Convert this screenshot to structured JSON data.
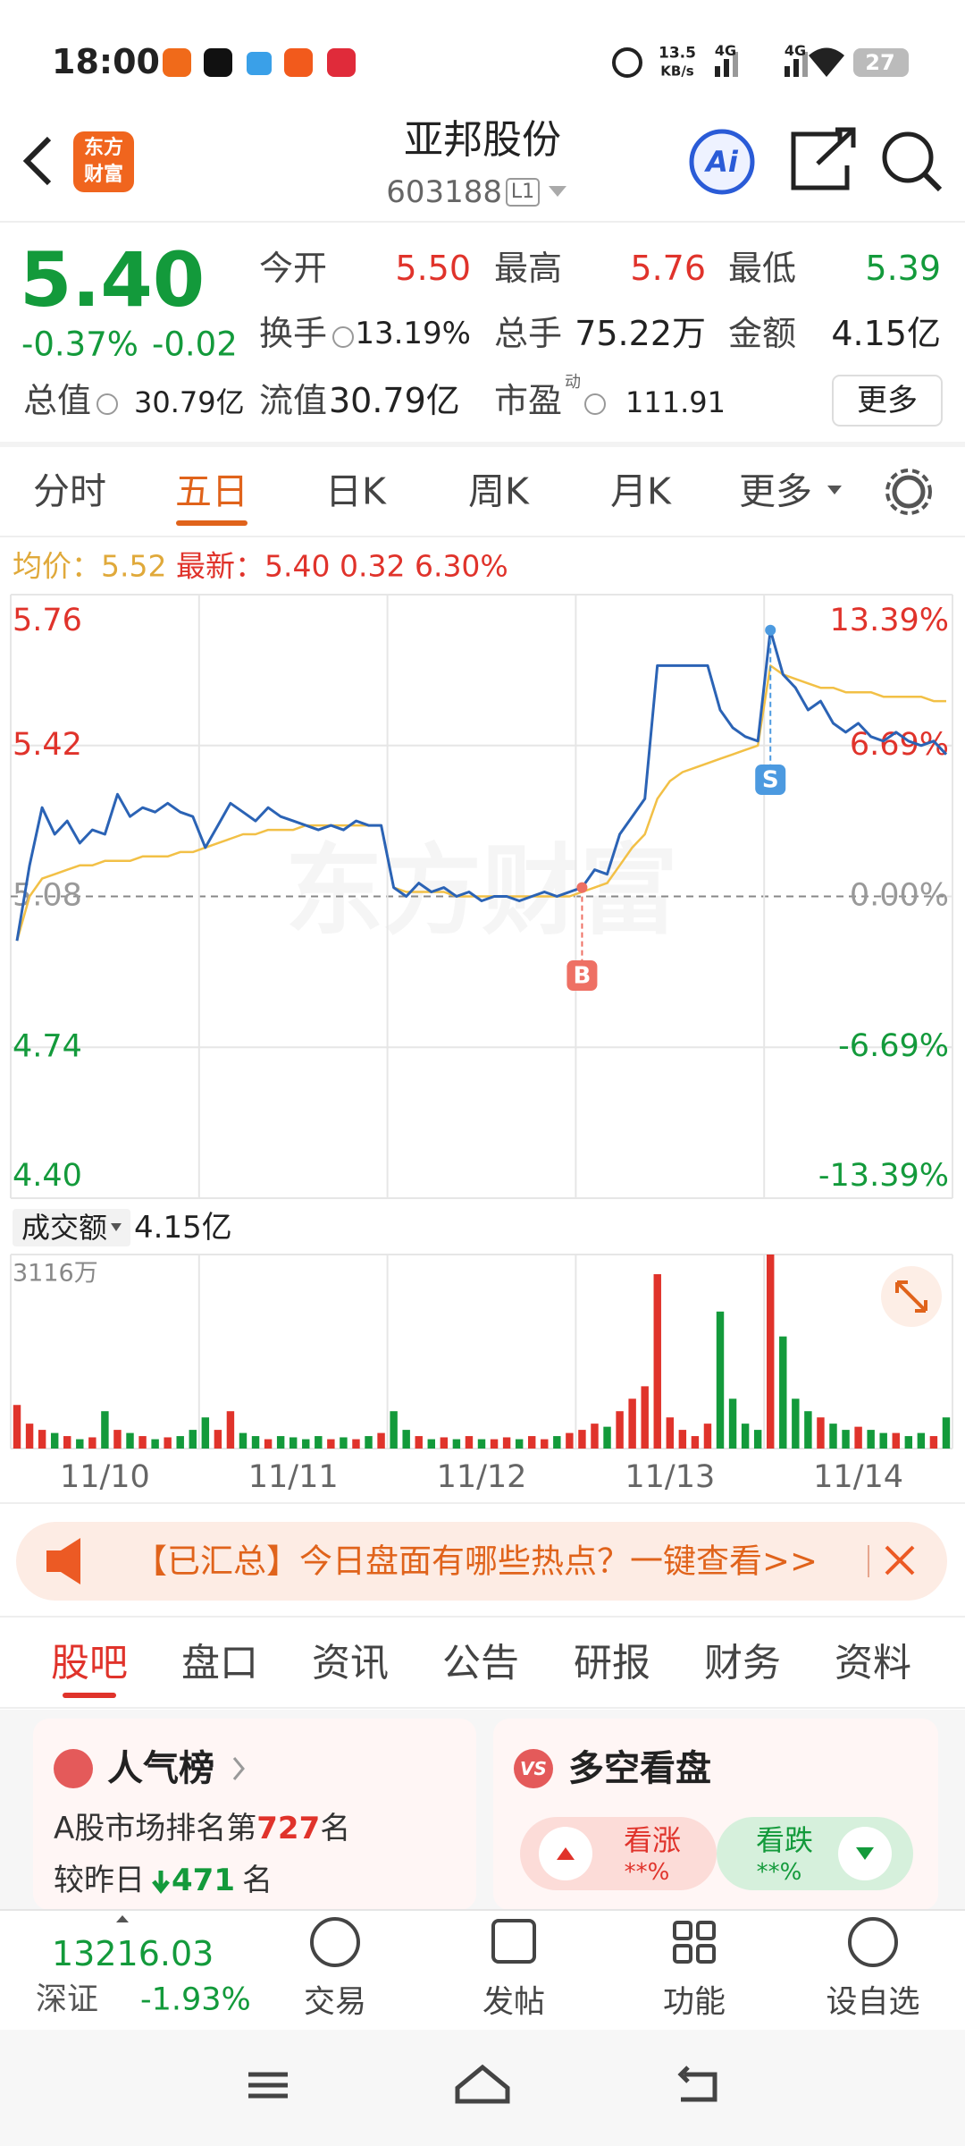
{
  "status_bar": {
    "time": "18:00",
    "speed": "13.5",
    "speed_unit": "KB/s",
    "net1": "4G",
    "net2": "4G",
    "battery": "27"
  },
  "header": {
    "logo_top": "东方",
    "logo_bottom": "财富",
    "title": "亚邦股份",
    "code": "603188",
    "level": "L1",
    "ai": "Ai"
  },
  "quote": {
    "price": "5.40",
    "change_pct": "-0.37%",
    "change": "-0.02",
    "open_label": "今开",
    "open": "5.50",
    "high_label": "最高",
    "high": "5.76",
    "low_label": "最低",
    "low": "5.39",
    "turnover_label": "换手",
    "turnover": "13.19%",
    "volume_label": "总手",
    "volume": "75.22万",
    "amount_label": "金额",
    "amount": "4.15亿",
    "mcap_label": "总值",
    "mcap": "30.79亿",
    "float_label": "流值",
    "float": "30.79亿",
    "pe_label": "市盈",
    "pe_sup": "动",
    "pe": "111.91",
    "more": "更多"
  },
  "chart_tabs": {
    "items": [
      "分时",
      "五日",
      "日K",
      "周K",
      "月K",
      "更多"
    ],
    "active": 1
  },
  "chart_legend": {
    "avg_label": "均价：",
    "avg": "5.52",
    "latest_label": "最新：",
    "latest": "5.40",
    "change": "0.32",
    "change_pct": "6.30%"
  },
  "chart": {
    "type": "line",
    "watermark": "东方财富",
    "ylim": [
      4.4,
      5.76
    ],
    "yticks": [
      5.76,
      5.42,
      5.08,
      4.74,
      {
        "value": 4.4,
        "label": "4.40"
      }
    ],
    "y2lim": [
      -13.39,
      13.39
    ],
    "y2ticks": [
      {
        "value": 13.39,
        "label": "13.39%"
      },
      {
        "value": 6.69,
        "label": "6.69%"
      },
      {
        "value": 0,
        "label": "0.00%"
      },
      {
        "value": -6.69,
        "label": "-6.69%"
      },
      {
        "value": -13.39,
        "label": "-13.39%"
      }
    ],
    "days": [
      "11/10",
      "11/11",
      "11/12",
      "11/13",
      "11/14"
    ],
    "price_color": "#2b63b5",
    "avg_color": "#f2c046",
    "price": [
      4.98,
      5.15,
      5.28,
      5.22,
      5.25,
      5.2,
      5.23,
      5.22,
      5.31,
      5.26,
      5.28,
      5.27,
      5.29,
      5.27,
      5.26,
      5.19,
      5.24,
      5.29,
      5.27,
      5.25,
      5.28,
      5.26,
      5.25,
      5.24,
      5.23,
      5.24,
      5.23,
      5.25,
      5.24,
      5.24,
      5.1,
      5.08,
      5.11,
      5.09,
      5.1,
      5.08,
      5.09,
      5.07,
      5.08,
      5.08,
      5.07,
      5.08,
      5.09,
      5.08,
      5.09,
      5.1,
      5.14,
      5.13,
      5.22,
      5.26,
      5.3,
      5.6,
      5.6,
      5.6,
      5.6,
      5.6,
      5.5,
      5.46,
      5.44,
      5.43,
      5.68,
      5.58,
      5.55,
      5.5,
      5.52,
      5.47,
      5.45,
      5.47,
      5.44,
      5.43,
      5.45,
      5.43,
      5.42,
      5.43,
      5.4
    ],
    "avg": [
      4.98,
      5.08,
      5.12,
      5.13,
      5.14,
      5.15,
      5.15,
      5.16,
      5.16,
      5.16,
      5.17,
      5.17,
      5.17,
      5.18,
      5.18,
      5.19,
      5.2,
      5.21,
      5.22,
      5.22,
      5.23,
      5.23,
      5.23,
      5.24,
      5.24,
      5.24,
      5.24,
      5.24,
      5.24,
      5.24,
      5.1,
      5.09,
      5.09,
      5.09,
      5.09,
      5.08,
      5.08,
      5.08,
      5.08,
      5.08,
      5.08,
      5.08,
      5.08,
      5.08,
      5.08,
      5.09,
      5.1,
      5.11,
      5.15,
      5.19,
      5.22,
      5.3,
      5.34,
      5.36,
      5.37,
      5.38,
      5.39,
      5.4,
      5.41,
      5.42,
      5.6,
      5.58,
      5.57,
      5.56,
      5.55,
      5.55,
      5.54,
      5.54,
      5.54,
      5.53,
      5.53,
      5.53,
      5.53,
      5.52,
      5.52
    ],
    "markers": {
      "buy": "B",
      "sell": "S"
    }
  },
  "volume": {
    "label": "成交额",
    "total": "4.15亿",
    "ylim": [
      0,
      3116
    ],
    "yticks": [
      {
        "value": 3116,
        "label": "3116万"
      }
    ],
    "up_color": "#e0332b",
    "down_color": "#139a3b",
    "values": [
      700,
      400,
      300,
      250,
      200,
      150,
      180,
      600,
      300,
      250,
      200,
      150,
      180,
      200,
      300,
      500,
      300,
      600,
      250,
      200,
      150,
      200,
      180,
      150,
      200,
      150,
      180,
      150,
      200,
      250,
      600,
      300,
      200,
      150,
      180,
      150,
      200,
      150,
      150,
      180,
      150,
      200,
      150,
      200,
      250,
      300,
      400,
      350,
      600,
      800,
      1000,
      2800,
      500,
      300,
      200,
      400,
      2200,
      800,
      400,
      300,
      3116,
      1800,
      800,
      600,
      500,
      400,
      300,
      350,
      300,
      250,
      250,
      200,
      250,
      200,
      500
    ]
  },
  "banner": {
    "text": "【已汇总】今日盘面有哪些热点？一键查看>>"
  },
  "info_tabs": {
    "items": [
      "股吧",
      "盘口",
      "资讯",
      "公告",
      "研报",
      "财务",
      "资料"
    ],
    "active": 0
  },
  "cards": {
    "popularity": {
      "title": "人气榜",
      "rank_prefix": "A股市场排名第",
      "rank": "727",
      "rank_suffix": "名",
      "change_prefix": "较昨日",
      "change": "471",
      "change_suffix": "名"
    },
    "sentiment": {
      "badge": "VS",
      "title": "多空看盘",
      "bull": "看涨",
      "bull_value": "**%",
      "bear": "看跌",
      "bear_value": "**%"
    }
  },
  "bottom_bar": {
    "index_value": "13216.03",
    "index_name": "深证",
    "index_change": "-1.93%",
    "actions": [
      "交易",
      "发帖",
      "功能",
      "设自选"
    ]
  }
}
